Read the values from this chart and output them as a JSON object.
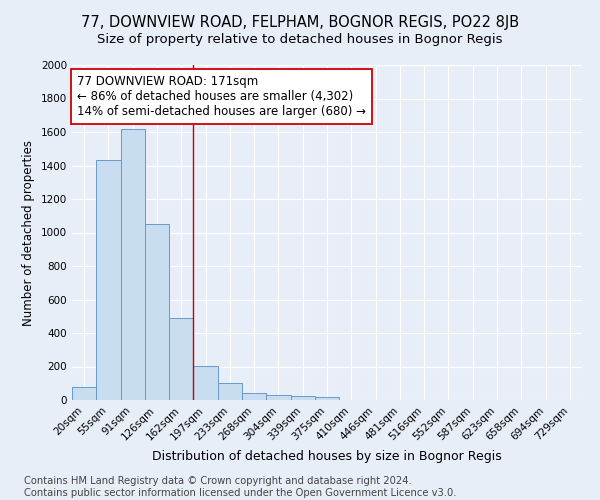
{
  "title": "77, DOWNVIEW ROAD, FELPHAM, BOGNOR REGIS, PO22 8JB",
  "subtitle": "Size of property relative to detached houses in Bognor Regis",
  "xlabel": "Distribution of detached houses by size in Bognor Regis",
  "ylabel": "Number of detached properties",
  "bar_labels": [
    "20sqm",
    "55sqm",
    "91sqm",
    "126sqm",
    "162sqm",
    "197sqm",
    "233sqm",
    "268sqm",
    "304sqm",
    "339sqm",
    "375sqm",
    "410sqm",
    "446sqm",
    "481sqm",
    "516sqm",
    "552sqm",
    "587sqm",
    "623sqm",
    "658sqm",
    "694sqm",
    "729sqm"
  ],
  "bar_values": [
    80,
    1430,
    1620,
    1050,
    490,
    205,
    100,
    42,
    28,
    22,
    18,
    0,
    0,
    0,
    0,
    0,
    0,
    0,
    0,
    0,
    0
  ],
  "bar_color": "#c9ddf0",
  "bar_edge_color": "#6699cc",
  "background_color": "#e8eef8",
  "grid_color": "#ffffff",
  "vline_x": 4.5,
  "vline_color": "#cc0000",
  "annotation_line1": "77 DOWNVIEW ROAD: 171sqm",
  "annotation_line2": "← 86% of detached houses are smaller (4,302)",
  "annotation_line3": "14% of semi-detached houses are larger (680) →",
  "annotation_box_color": "#ffffff",
  "annotation_box_edge_color": "#cc0000",
  "footer_text": "Contains HM Land Registry data © Crown copyright and database right 2024.\nContains public sector information licensed under the Open Government Licence v3.0.",
  "ylim": [
    0,
    2000
  ],
  "yticks": [
    0,
    200,
    400,
    600,
    800,
    1000,
    1200,
    1400,
    1600,
    1800,
    2000
  ],
  "title_fontsize": 10.5,
  "subtitle_fontsize": 9.5,
  "annotation_fontsize": 8.5,
  "ylabel_fontsize": 8.5,
  "xlabel_fontsize": 9,
  "footer_fontsize": 7.2,
  "tick_fontsize": 7.5
}
